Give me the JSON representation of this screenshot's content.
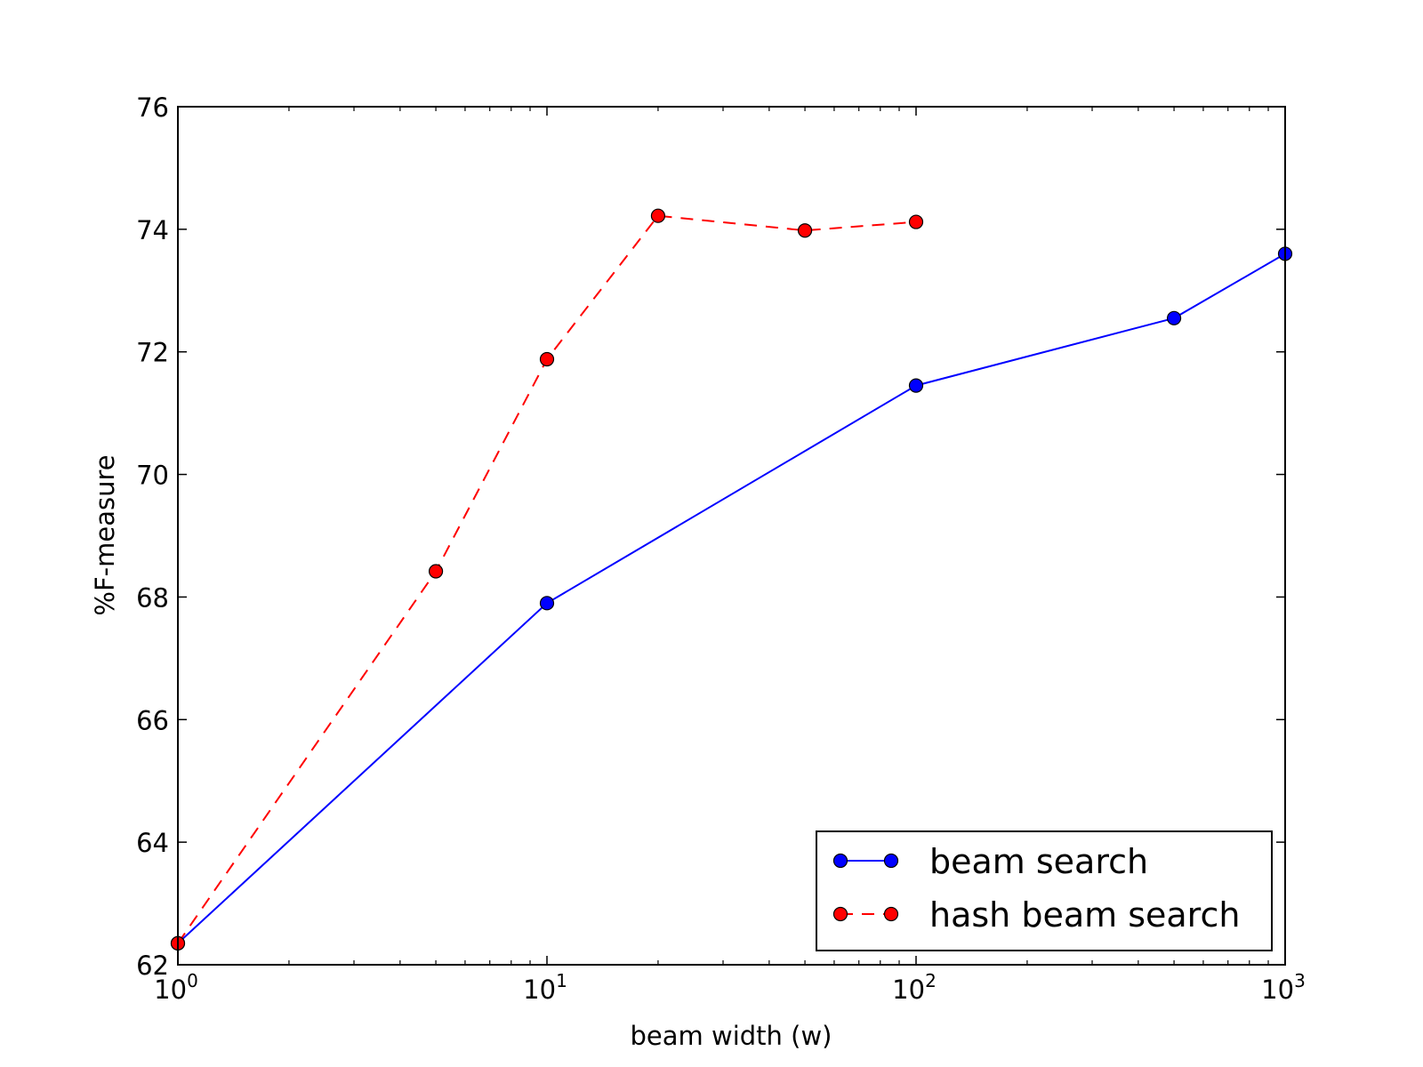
{
  "chart_data": {
    "type": "line",
    "title": "",
    "xlabel": "beam width (w)",
    "ylabel": "%F-measure",
    "xscale": "log",
    "xlim": [
      1,
      1000
    ],
    "ylim": [
      62,
      76
    ],
    "grid": false,
    "legend_position": "lower-right",
    "x_ticks": [
      {
        "value": 1,
        "base": "10",
        "exponent": "0"
      },
      {
        "value": 10,
        "base": "10",
        "exponent": "1"
      },
      {
        "value": 100,
        "base": "10",
        "exponent": "2"
      },
      {
        "value": 1000,
        "base": "10",
        "exponent": "3"
      }
    ],
    "y_ticks": [
      62,
      64,
      66,
      68,
      70,
      72,
      74,
      76
    ],
    "series": [
      {
        "name": "beam search",
        "color": "#0000ff",
        "line_style": "solid",
        "marker": "circle",
        "x": [
          1,
          10,
          100,
          500,
          1000
        ],
        "y": [
          62.35,
          67.9,
          71.45,
          72.55,
          73.6
        ]
      },
      {
        "name": "hash beam search",
        "color": "#ff0000",
        "line_style": "dashed",
        "marker": "circle",
        "x": [
          1,
          5,
          10,
          20,
          50,
          100
        ],
        "y": [
          62.35,
          68.42,
          71.88,
          74.22,
          73.98,
          74.12
        ]
      }
    ]
  }
}
